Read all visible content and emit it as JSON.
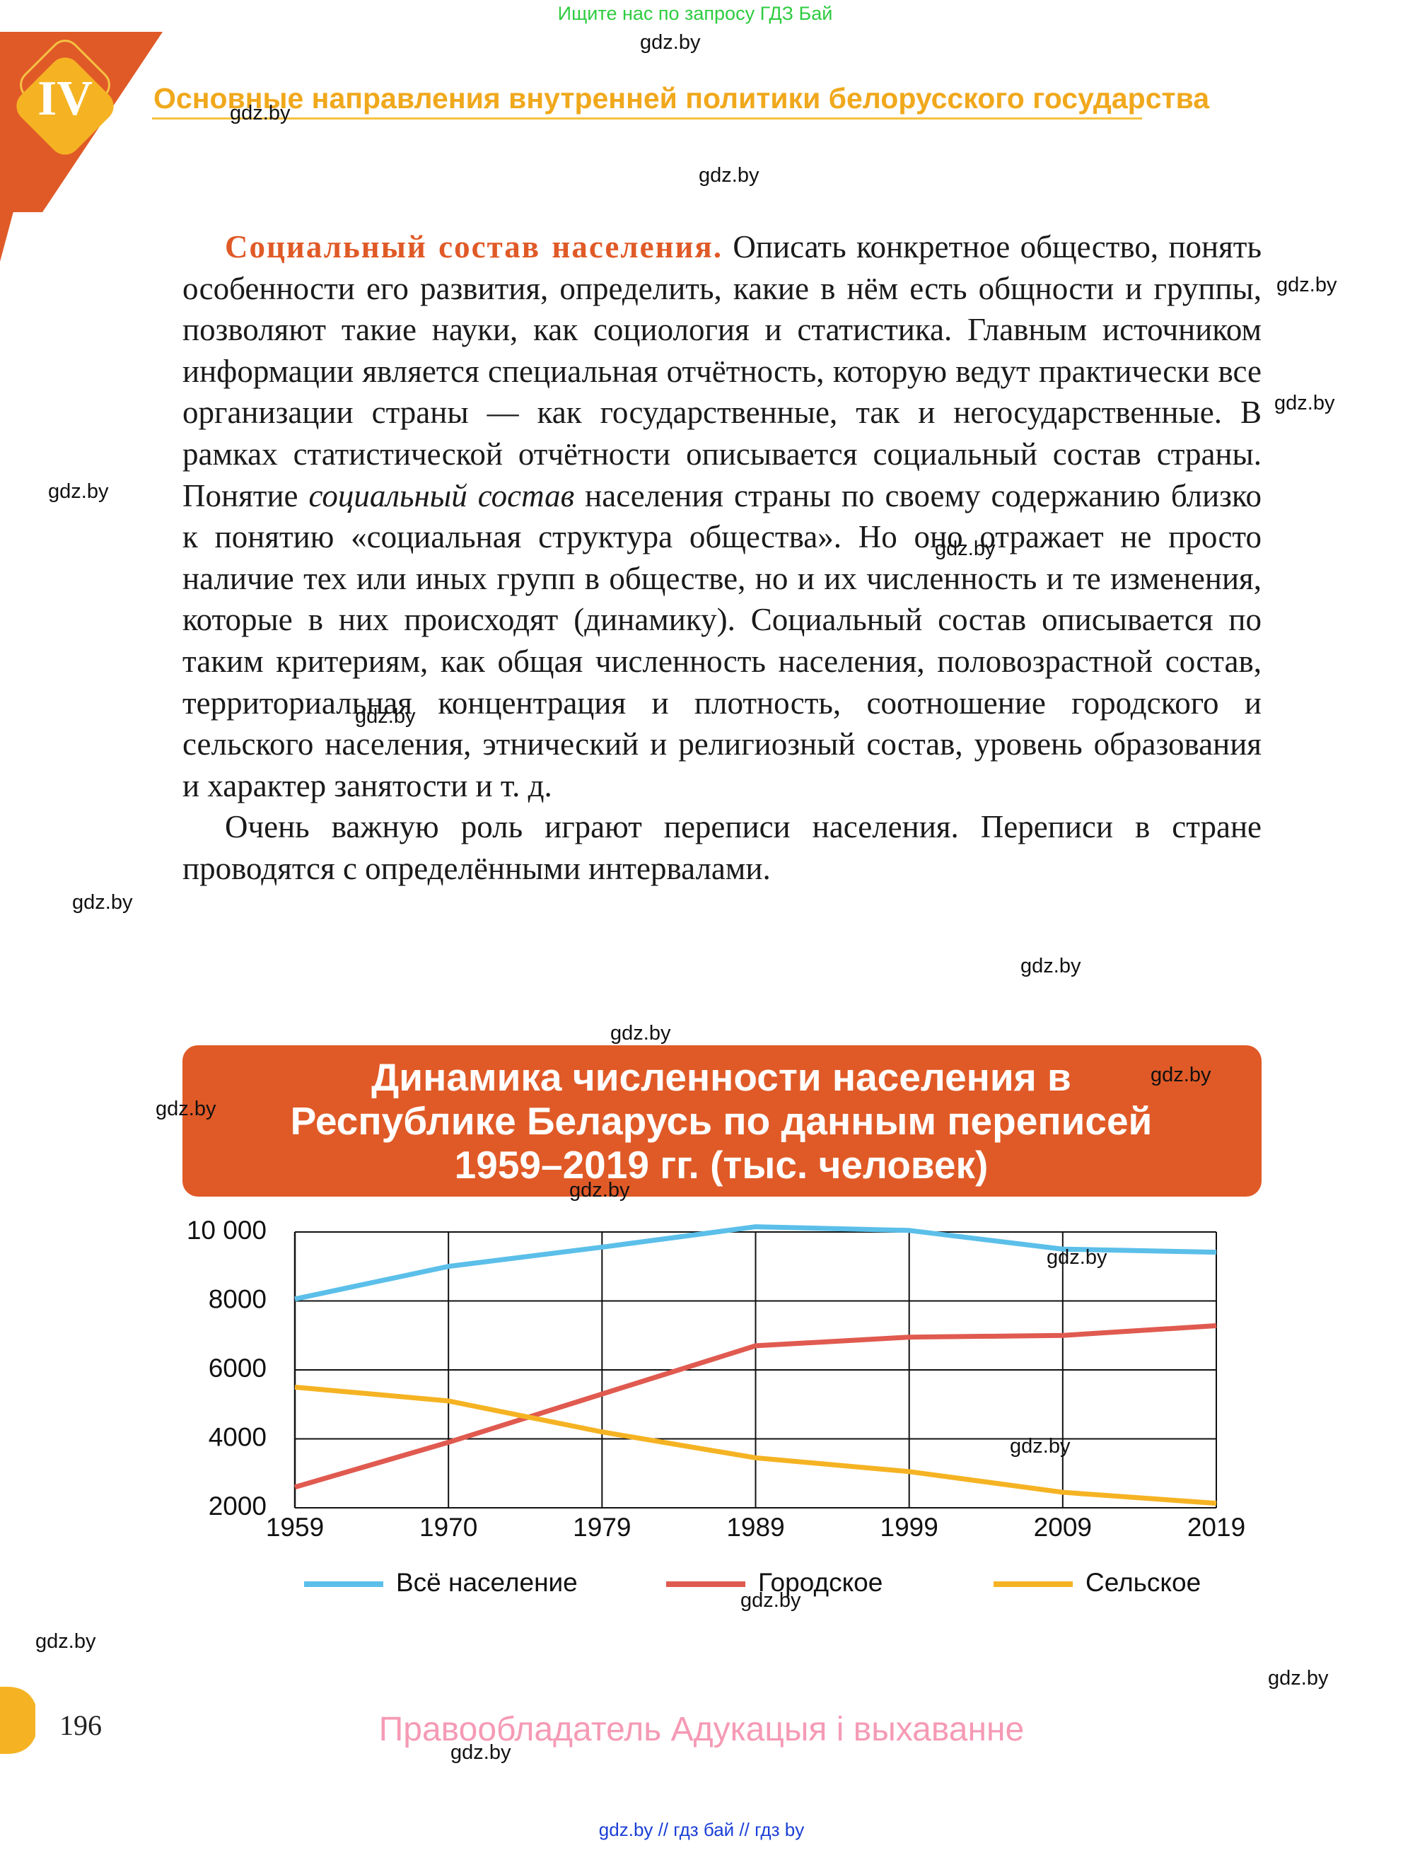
{
  "header": {
    "note": "Ищите нас по запросу ГДЗ Бай",
    "chapter": "IV",
    "title": "Основные направления внутренней политики белорусского государства"
  },
  "body": {
    "lead": "Социальный состав населения.",
    "p1_before_term": "Описать конкретное общество, понять особенности его развития, определить, какие в нём есть общности и группы, позволяют такие науки, как социология и статистика. Главным источником информации является специальная отчётность, которую ведут практически все организации страны — как государственные, так и негосударственные. В рамках статистической отчётности описывается социальный состав страны. Понятие",
    "term": "социальный состав",
    "p1_after_term": "населения страны по своему содержанию близко к понятию «социальная структура общества». Но оно отражает не просто наличие тех или иных групп в обществе, но и их численность и те изменения, которые в них происходят (динамику). Социальный состав описывается по таким критериям, как общая численность населения, половозрастной состав, территориальная концентрация и плотность, соотношение городского и сельского населения, этнический и религиозный состав, уровень образования и характер занятости и т. д.",
    "p2": "Очень важную роль играют переписи населения. Переписи в стране проводятся с определёнными интервалами."
  },
  "chart_data": {
    "type": "line",
    "title": "Динамика численности населения в Республике Беларусь по данным переписей 1959–2019 гг. (тыс. человек)",
    "categories": [
      "1959",
      "1970",
      "1979",
      "1989",
      "1999",
      "2009",
      "2019"
    ],
    "ylim": [
      2000,
      10000
    ],
    "yticks": [
      2000,
      4000,
      6000,
      8000,
      {
        "value": 10000,
        "label": "10 000"
      }
    ],
    "grid": true,
    "series": [
      {
        "name": "Всё население",
        "color": "#5bbfe9",
        "values": [
          8055,
          9002,
          9560,
          10152,
          10045,
          9503,
          9413
        ]
      },
      {
        "name": "Городское",
        "color": "#e05a50",
        "values": [
          2600,
          3900,
          5300,
          6700,
          6950,
          7000,
          7283
        ]
      },
      {
        "name": "Сельское",
        "color": "#f5b323",
        "values": [
          5500,
          5100,
          4200,
          3450,
          3050,
          2450,
          2130
        ]
      }
    ]
  },
  "footer": {
    "page": "196",
    "rights": "Правообладатель Адукацыя і выхаванне",
    "links": "gdz.by  //  гдз бай  //  гдз by"
  },
  "watermarks": [
    "gdz.by",
    "gdz.by",
    "gdz.by",
    "gdz.by",
    "gdz.by",
    "gdz.by",
    "gdz.by",
    "gdz.by",
    "gdz.by",
    "gdz.by",
    "gdz.by",
    "gdz.by",
    "gdz.by",
    "gdz.by",
    "gdz.by",
    "gdz.by",
    "gdz.by",
    "gdz.by",
    "gdz.by",
    "gdz.by"
  ]
}
